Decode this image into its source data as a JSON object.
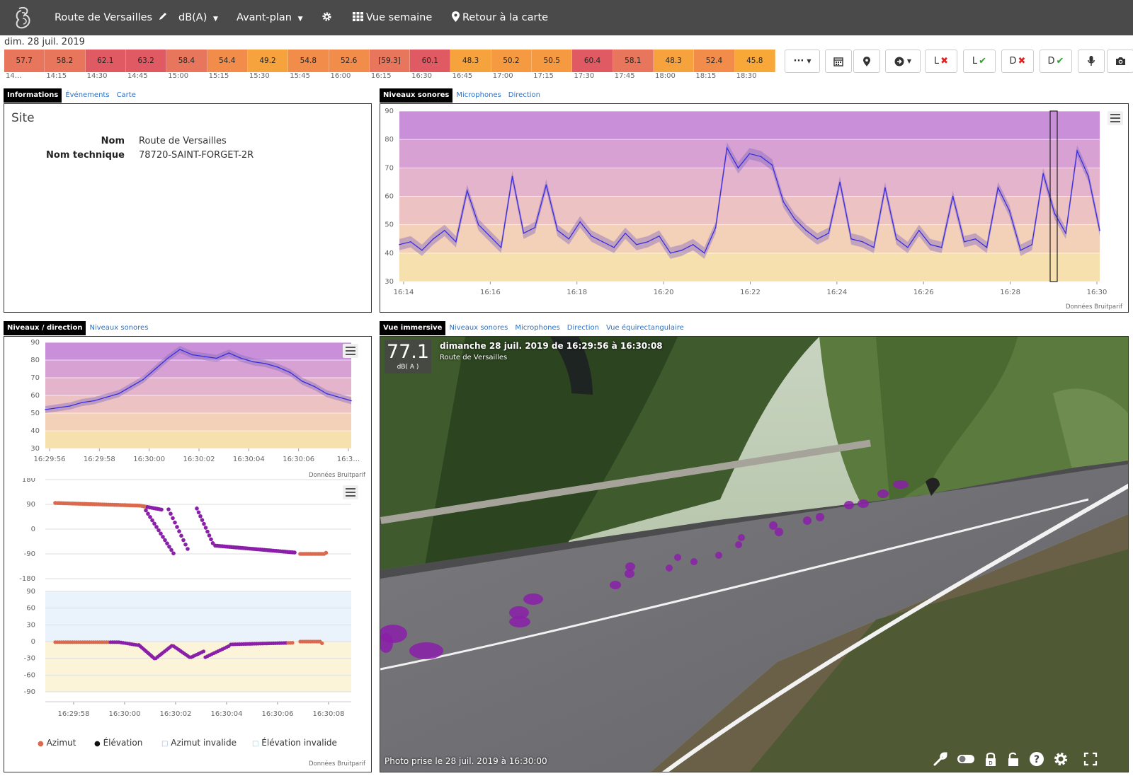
{
  "nav": {
    "site_name": "Route de Versailles",
    "unit": "dB(A)",
    "foreground": "Avant-plan",
    "week_view": "Vue semaine",
    "back_to_map": "Retour à la carte"
  },
  "date_label": "dim. 28 juil. 2019",
  "level_bars": [
    {
      "value": "57.7",
      "color": "#e8765c"
    },
    {
      "value": "58.2",
      "color": "#e8765c"
    },
    {
      "value": "62.1",
      "color": "#e05a64"
    },
    {
      "value": "63.2",
      "color": "#e05a64"
    },
    {
      "value": "58.4",
      "color": "#e8765c"
    },
    {
      "value": "54.4",
      "color": "#f28c4a"
    },
    {
      "value": "49.2",
      "color": "#f7a33d"
    },
    {
      "value": "54.8",
      "color": "#f28c4a"
    },
    {
      "value": "52.6",
      "color": "#f28c4a"
    },
    {
      "value": "[59.3]",
      "color": "#e8765c"
    },
    {
      "value": "60.1",
      "color": "#e05a64"
    },
    {
      "value": "48.3",
      "color": "#f7a33d"
    },
    {
      "value": "50.2",
      "color": "#f59a40"
    },
    {
      "value": "50.5",
      "color": "#f59a40"
    },
    {
      "value": "60.4",
      "color": "#e05a64"
    },
    {
      "value": "58.1",
      "color": "#e8765c"
    },
    {
      "value": "48.3",
      "color": "#f7a33d"
    },
    {
      "value": "52.4",
      "color": "#f28c4a"
    },
    {
      "value": "45.8",
      "color": "#f8a838"
    }
  ],
  "bar_times": [
    "14…",
    "14:15",
    "14:30",
    "14:45",
    "15:00",
    "15:15",
    "15:30",
    "15:45",
    "16:00",
    "16:15",
    "16:30",
    "16:45",
    "17:00",
    "17:15",
    "17:30",
    "17:45",
    "18:00",
    "18:15",
    "18:30"
  ],
  "toolbar": {
    "more": "···",
    "l_cross": "L",
    "l_check": "L",
    "d_cross": "D",
    "d_check": "D"
  },
  "info_panel": {
    "tabs": [
      "Informations",
      "Événements",
      "Carte"
    ],
    "heading": "Site",
    "rows": [
      {
        "label": "Nom",
        "value": "Route de Versailles"
      },
      {
        "label": "Nom technique",
        "value": "78720-SAINT-FORGET-2R"
      }
    ]
  },
  "sound_panel": {
    "tabs": [
      "Niveaux sonores",
      "Microphones",
      "Direction"
    ],
    "credit": "Données Bruitparif"
  },
  "dir_panel": {
    "tabs": [
      "Niveaux / direction",
      "Niveaux sonores"
    ],
    "credit_top": "Données Bruitparif",
    "credit_bottom": "Données Bruitparif",
    "legend": [
      "Azimut",
      "Élévation",
      "Azimut invalide",
      "Élévation invalide"
    ]
  },
  "immersive_panel": {
    "tabs": [
      "Vue immersive",
      "Niveaux sonores",
      "Microphones",
      "Direction",
      "Vue équirectangulaire"
    ],
    "level": "77.1",
    "level_unit": "dB( A )",
    "title": "dimanche 28 juil. 2019 de 16:29:56 à 16:30:08",
    "subtitle": "Route de Versailles",
    "photo_caption": "Photo prise le 28 juil. 2019 à 16:30:00"
  },
  "chart_data": [
    {
      "type": "line",
      "name": "levels-overview",
      "ylim": [
        30,
        90
      ],
      "y_ticks": [
        90,
        80,
        70,
        60,
        50,
        40,
        30
      ],
      "x_ticks": [
        "16:14",
        "16:16",
        "16:18",
        "16:20",
        "16:22",
        "16:24",
        "16:26",
        "16:28",
        "16:30"
      ],
      "x_minutes": [
        0,
        0.5,
        1,
        1.5,
        2,
        2.5,
        3,
        3.5,
        4,
        4.5,
        5,
        5.5,
        6,
        6.5,
        7,
        7.5,
        8,
        8.5,
        9,
        9.5,
        10,
        10.5,
        11,
        11.5,
        12,
        12.5,
        13,
        13.5,
        14,
        14.5,
        15,
        15.5,
        16,
        16.5,
        17,
        17.5,
        18,
        18.5,
        19,
        19.5,
        20,
        20.5,
        21,
        21.5,
        22,
        22.5,
        23,
        23.5,
        24,
        24.5,
        25,
        25.5,
        26,
        26.5,
        27,
        27.5,
        28,
        28.5,
        29,
        29.5,
        30,
        30.5,
        31
      ],
      "values": [
        43,
        44,
        41,
        45,
        48,
        44,
        62,
        50,
        46,
        42,
        67,
        47,
        49,
        64,
        48,
        45,
        51,
        46,
        44,
        42,
        47,
        43,
        44,
        46,
        40,
        41,
        43,
        40,
        49,
        77,
        70,
        75,
        74,
        71,
        58,
        52,
        48,
        45,
        47,
        65,
        45,
        44,
        42,
        63,
        45,
        42,
        48,
        43,
        42,
        60,
        44,
        45,
        42,
        63,
        55,
        41,
        43,
        68,
        54,
        47,
        76,
        67,
        48
      ]
    },
    {
      "type": "line",
      "name": "levels-detail",
      "ylim": [
        30,
        90
      ],
      "y_ticks": [
        90,
        80,
        70,
        60,
        50,
        40,
        30
      ],
      "x_ticks": [
        "16:29:56",
        "16:29:58",
        "16:30:00",
        "16:30:02",
        "16:30:04",
        "16:30:06",
        "16:3…"
      ],
      "x_seconds": [
        0,
        0.5,
        1,
        1.5,
        2,
        2.5,
        3,
        3.5,
        4,
        4.5,
        5,
        5.5,
        6,
        6.5,
        7,
        7.5,
        8,
        8.5,
        9,
        9.5,
        10,
        10.5,
        11,
        11.5,
        12,
        12.5
      ],
      "values": [
        52,
        53,
        54,
        56,
        57,
        59,
        61,
        65,
        69,
        75,
        81,
        86,
        83,
        82,
        81,
        84,
        81,
        79,
        78,
        76,
        73,
        68,
        65,
        61,
        59,
        57
      ]
    },
    {
      "type": "scatter",
      "name": "azimuth",
      "ylim": [
        -180,
        180
      ],
      "y_ticks": [
        180,
        90,
        0,
        -90,
        -180
      ],
      "x_ticks": [
        "16:29:58",
        "16:30:00",
        "16:30:02",
        "16:30:04",
        "16:30:06",
        "16:30:08"
      ],
      "series": [
        {
          "name": "Azimut",
          "color": "#d96a4f"
        },
        {
          "name": "Élévation",
          "color": "#8a1fa8"
        }
      ]
    },
    {
      "type": "scatter",
      "name": "elevation",
      "ylim": [
        -90,
        90
      ],
      "y_ticks": [
        90,
        60,
        30,
        0,
        -30,
        -60,
        -90
      ],
      "x_ticks": [
        "16:29:58",
        "16:30:00",
        "16:30:02",
        "16:30:04",
        "16:30:06",
        "16:30:08"
      ]
    }
  ]
}
